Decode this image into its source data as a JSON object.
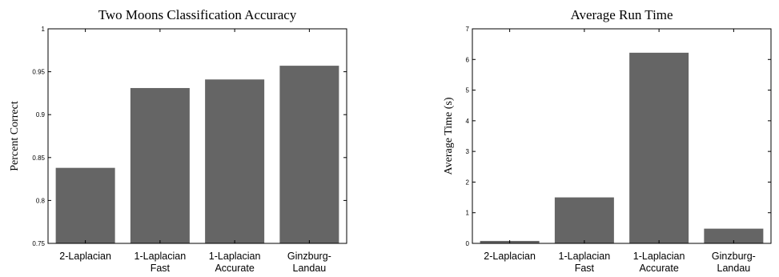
{
  "chart_data": [
    {
      "type": "bar",
      "title": "Two Moons Classification Accuracy",
      "xlabel": "",
      "ylabel": "Percent Correct",
      "categories": [
        [
          "2-Laplacian"
        ],
        [
          "1-Laplacian",
          "Fast"
        ],
        [
          "1-Laplacian",
          "Accurate"
        ],
        [
          "Ginzburg-",
          "Landau"
        ]
      ],
      "values": [
        0.838,
        0.931,
        0.941,
        0.957
      ],
      "ylim": [
        0.75,
        1
      ],
      "yticks": [
        0.75,
        0.8,
        0.85,
        0.9,
        0.95,
        1
      ],
      "ytick_labels": [
        "0.75",
        "0.8",
        "0.85",
        "0.9",
        "0.95",
        "1"
      ],
      "grid": false,
      "bar_color": "#656565"
    },
    {
      "type": "bar",
      "title": "Average Run Time",
      "xlabel": "",
      "ylabel": "Average Time (s)",
      "categories": [
        [
          "2-Laplacian"
        ],
        [
          "1-Laplacian",
          "Fast"
        ],
        [
          "1-Laplacian",
          "Accurate"
        ],
        [
          "Ginzburg-",
          "Landau"
        ]
      ],
      "values": [
        0.08,
        1.5,
        6.22,
        0.48
      ],
      "ylim": [
        0,
        7
      ],
      "yticks": [
        0,
        1,
        2,
        3,
        4,
        5,
        6,
        7
      ],
      "ytick_labels": [
        "0",
        "1",
        "2",
        "3",
        "4",
        "5",
        "6",
        "7"
      ],
      "grid": false,
      "bar_color": "#656565"
    }
  ]
}
